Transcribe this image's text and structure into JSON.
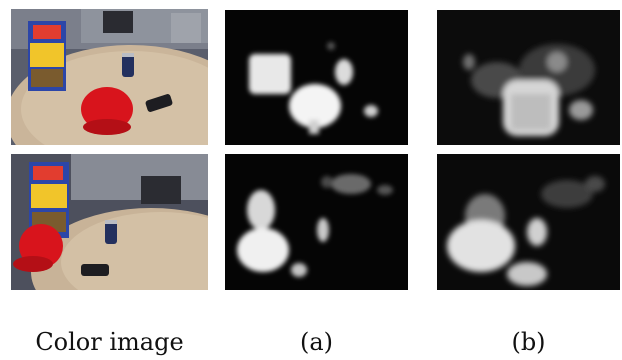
{
  "figure": {
    "captions": {
      "color_image": "Color image",
      "col_a": "(a)",
      "col_b": "(b)"
    },
    "colors": {
      "background": "#ffffff",
      "map_background": "#050505",
      "saliency_highlight": "#f4f4f4",
      "cereal_box_blue": "#2c46a8",
      "cereal_box_yellow": "#f1c52a",
      "cap_red": "#d8141c",
      "table_top": "#cbb79c",
      "carpet": "#4a4d5c"
    }
  }
}
